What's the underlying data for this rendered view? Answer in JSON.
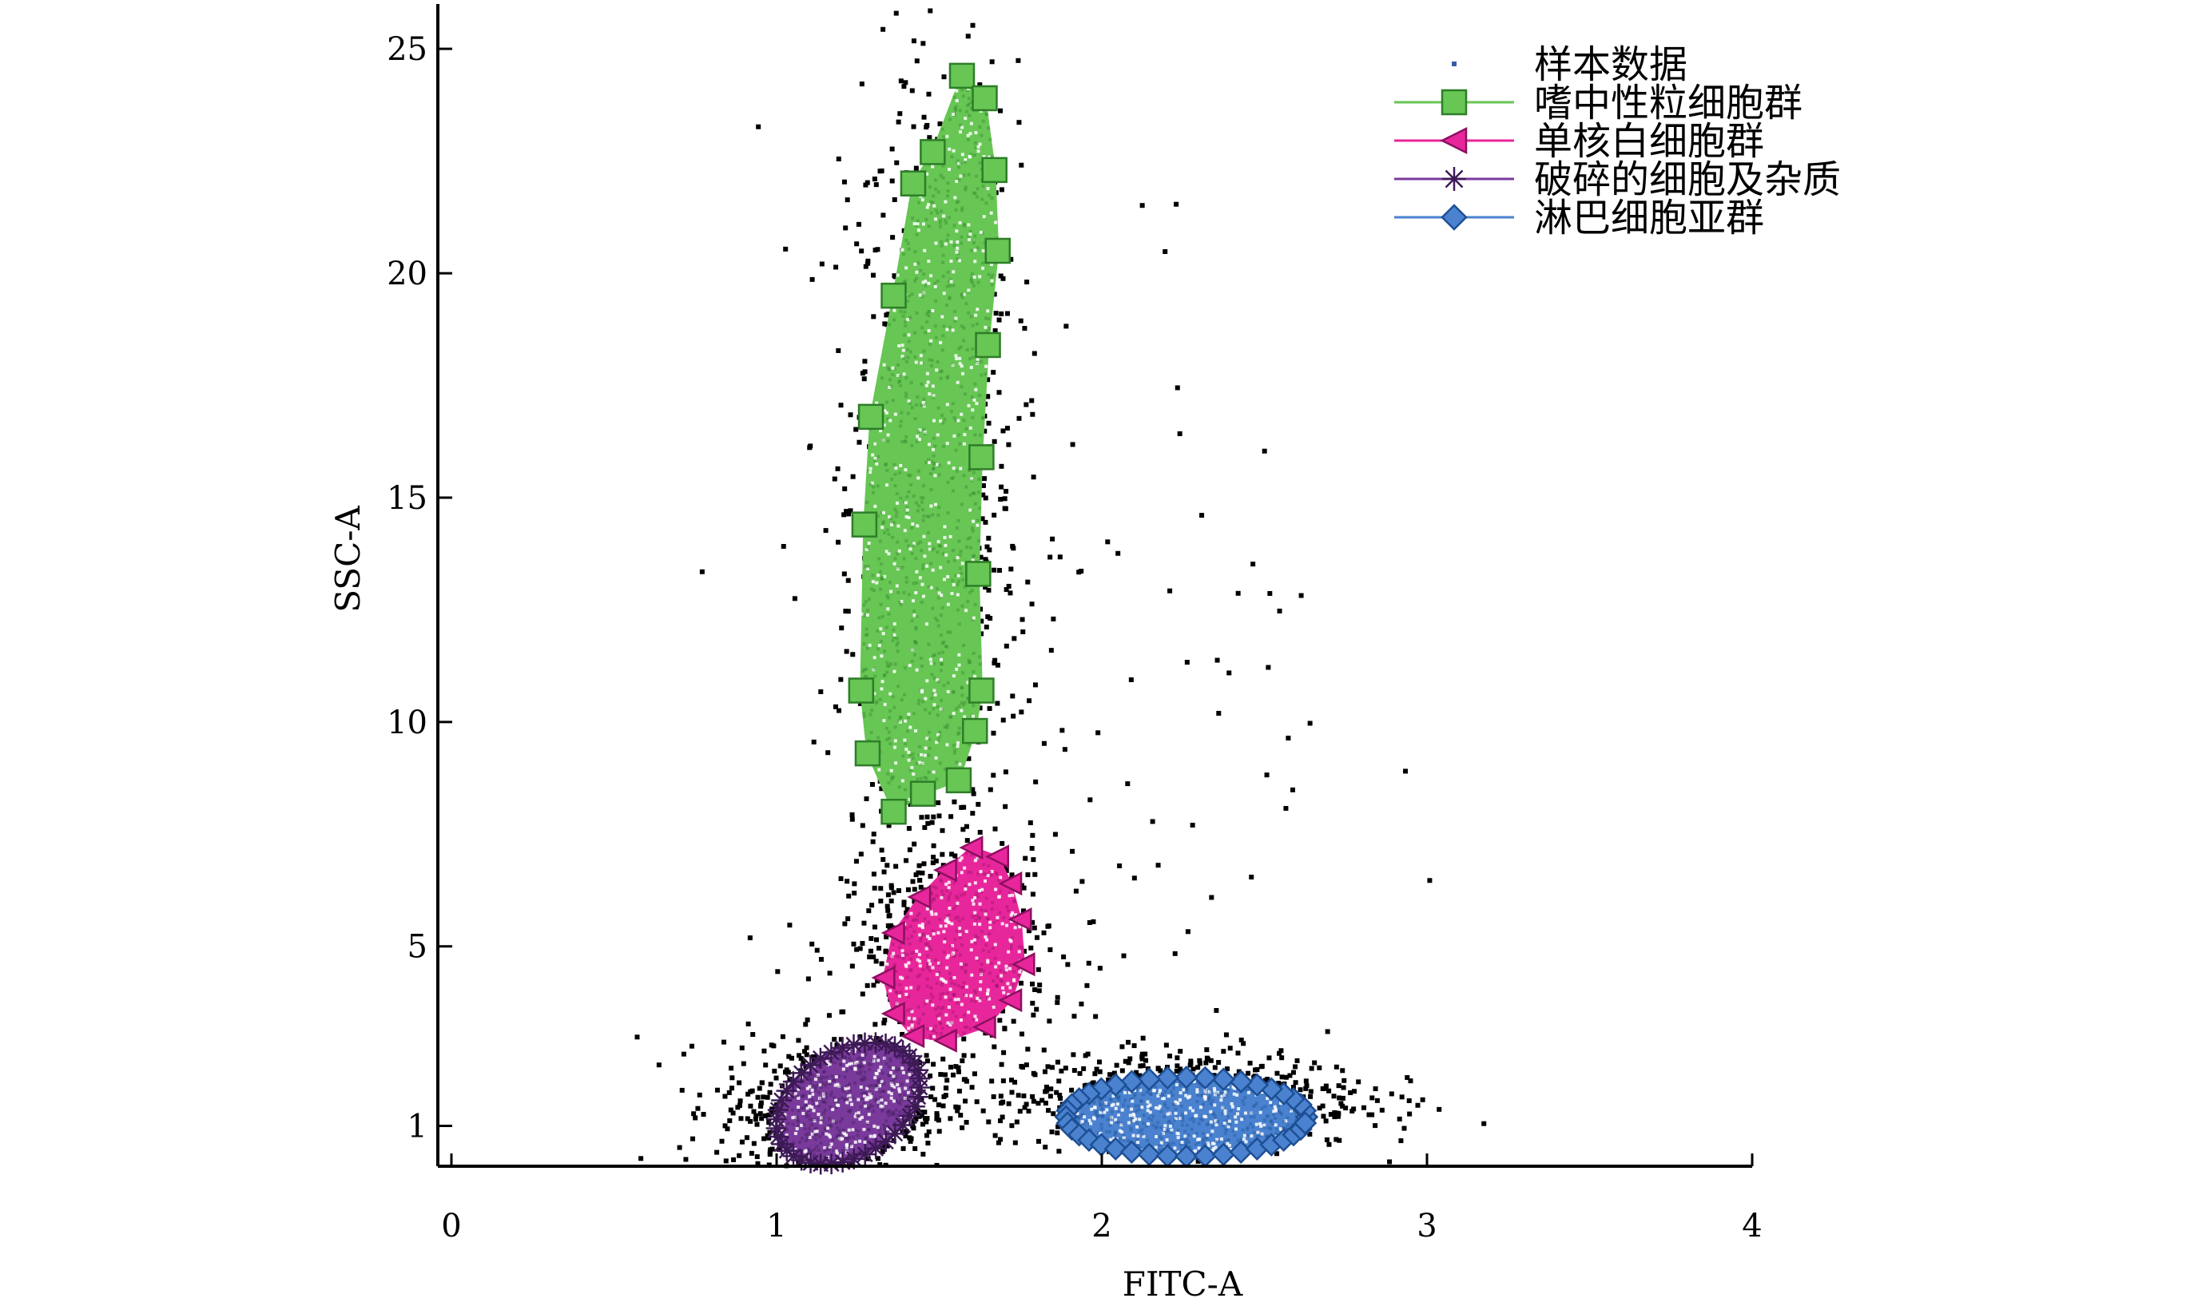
{
  "chart_data": {
    "type": "scatter",
    "title": "",
    "xlabel": "FITC-A",
    "ylabel": "SSC-A",
    "xlim": [
      0,
      4
    ],
    "ylim": [
      0.1,
      26
    ],
    "x_ticks": [
      0,
      1,
      2,
      3,
      4
    ],
    "y_ticks": [
      1,
      5,
      10,
      15,
      20,
      25
    ],
    "legend_position": "top-right",
    "series": [
      {
        "name": "样本数据",
        "marker": "point",
        "color": "#000000",
        "legend_color": "#3a5aa8",
        "clusters": [
          {
            "cx": 1.48,
            "cy": 15.0,
            "sx": 0.13,
            "sy": 4.8,
            "n": 900
          },
          {
            "cx": 1.52,
            "cy": 5.0,
            "sx": 0.16,
            "sy": 1.2,
            "n": 450
          },
          {
            "cx": 1.18,
            "cy": 1.4,
            "sx": 0.18,
            "sy": 0.75,
            "n": 600
          },
          {
            "cx": 2.25,
            "cy": 1.6,
            "sx": 0.28,
            "sy": 0.55,
            "n": 650
          },
          {
            "cx": 1.85,
            "cy": 10.0,
            "sx": 0.45,
            "sy": 6.0,
            "n": 120
          }
        ]
      },
      {
        "name": "嗜中性粒细胞群",
        "marker": "square",
        "color": "#67c654",
        "edge": "#2e7d28",
        "fill_density": 1100,
        "boundary": [
          [
            1.57,
            24.4
          ],
          [
            1.64,
            23.9
          ],
          [
            1.67,
            22.3
          ],
          [
            1.68,
            20.5
          ],
          [
            1.65,
            18.4
          ],
          [
            1.63,
            15.9
          ],
          [
            1.62,
            13.3
          ],
          [
            1.63,
            10.7
          ],
          [
            1.61,
            9.8
          ],
          [
            1.56,
            8.7
          ],
          [
            1.45,
            8.4
          ],
          [
            1.36,
            8.0
          ],
          [
            1.28,
            9.3
          ],
          [
            1.26,
            10.7
          ],
          [
            1.27,
            14.4
          ],
          [
            1.29,
            16.8
          ],
          [
            1.36,
            19.5
          ],
          [
            1.42,
            22.0
          ],
          [
            1.48,
            22.7
          ]
        ]
      },
      {
        "name": "单核白细胞群",
        "marker": "triangle-left",
        "color": "#e8269b",
        "edge": "#8c1060",
        "fill_density": 500,
        "boundary": [
          [
            1.6,
            7.2
          ],
          [
            1.68,
            7.0
          ],
          [
            1.72,
            6.4
          ],
          [
            1.75,
            5.6
          ],
          [
            1.76,
            4.6
          ],
          [
            1.72,
            3.8
          ],
          [
            1.64,
            3.2
          ],
          [
            1.52,
            2.9
          ],
          [
            1.42,
            3.0
          ],
          [
            1.36,
            3.5
          ],
          [
            1.33,
            4.3
          ],
          [
            1.36,
            5.3
          ],
          [
            1.44,
            6.1
          ],
          [
            1.52,
            6.7
          ]
        ]
      },
      {
        "name": "破碎的细胞及杂质",
        "marker": "asterisk",
        "color": "#7a3a9c",
        "edge": "#3d1a55",
        "fill_density": 600,
        "ellipse": {
          "cx": 1.22,
          "cy": 1.5,
          "rx": 0.24,
          "ry": 1.18,
          "rot": 0.55
        }
      },
      {
        "name": "淋巴细胞亚群",
        "marker": "diamond",
        "color": "#4a82cf",
        "edge": "#1e4f94",
        "fill_density": 650,
        "ellipse": {
          "cx": 2.26,
          "cy": 1.2,
          "rx": 0.37,
          "ry": 0.88,
          "rot": 0.0
        }
      }
    ]
  }
}
